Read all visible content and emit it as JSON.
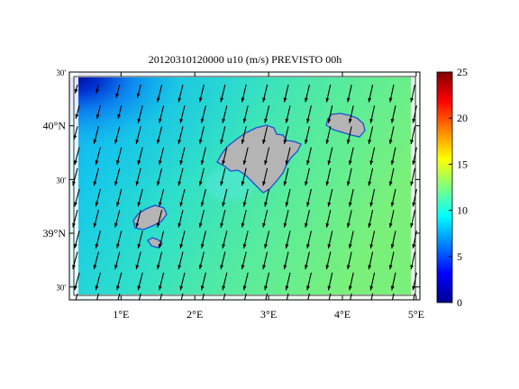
{
  "title": "20120310120000 u10 (m/s) PREVISTO 00h",
  "map": {
    "lon_range": [
      0.3,
      5.05
    ],
    "lat_range": [
      38.38,
      40.5
    ],
    "x_ticks": [
      {
        "lon": 1,
        "label": "1°E"
      },
      {
        "lon": 2,
        "label": "2°E"
      },
      {
        "lon": 3,
        "label": "3°E"
      },
      {
        "lon": 4,
        "label": "4°E"
      },
      {
        "lon": 5,
        "label": "5°E"
      }
    ],
    "y_ticks": [
      {
        "lat": 40.5,
        "label": "30'"
      },
      {
        "lat": 40.0,
        "label": "40°N"
      },
      {
        "lat": 39.5,
        "label": "30'"
      },
      {
        "lat": 39.0,
        "label": "39°N"
      },
      {
        "lat": 38.5,
        "label": "30'"
      }
    ],
    "land_color": "#b4b4b4",
    "islands": [
      {
        "name": "Mallorca"
      },
      {
        "name": "Menorca"
      },
      {
        "name": "Ibiza"
      },
      {
        "name": "Formentera"
      }
    ],
    "wind_direction": "from north (southward arrows)"
  },
  "colorbar": {
    "min": 0,
    "max": 25,
    "ticks": [
      "0",
      "5",
      "10",
      "15",
      "20",
      "25"
    ],
    "colormap": "jet"
  }
}
